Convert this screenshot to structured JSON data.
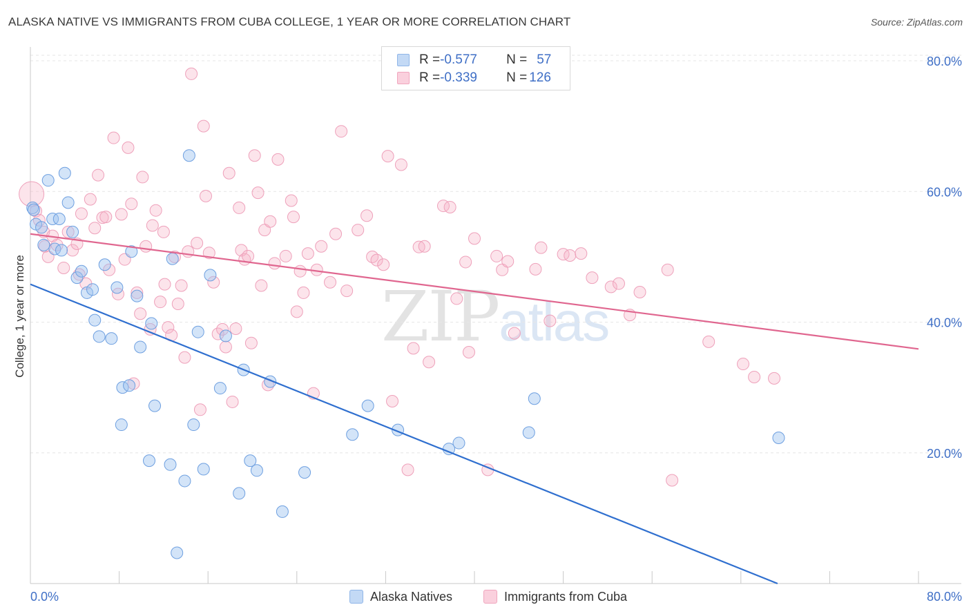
{
  "header": {
    "title": "ALASKA NATIVE VS IMMIGRANTS FROM CUBA COLLEGE, 1 YEAR OR MORE CORRELATION CHART",
    "source": "Source: ZipAtlas.com"
  },
  "watermark": {
    "zip": "ZIP",
    "atlas": "atlas"
  },
  "legend": {
    "rows": [
      {
        "r_label": "R = ",
        "r_value": "-0.577",
        "n_label": "N = ",
        "n_value": "57",
        "color": "#9ec3ef"
      },
      {
        "r_label": "R = ",
        "r_value": "-0.339",
        "n_label": "N = ",
        "n_value": "126",
        "color": "#f5b1c7"
      }
    ]
  },
  "bottom_legend": [
    "Alaska Natives",
    "Immigrants from Cuba"
  ],
  "chart_data": {
    "type": "scatter",
    "xlabel": "",
    "ylabel": "College, 1 year or more",
    "xlim": [
      0,
      80
    ],
    "ylim": [
      0,
      80
    ],
    "x_tick_labels": [
      "0.0%",
      "80.0%"
    ],
    "y_tick_labels": [
      "20.0%",
      "40.0%",
      "60.0%",
      "80.0%"
    ],
    "y_ticks": [
      20,
      40,
      60,
      80
    ],
    "grid": true,
    "colors": {
      "Alaska Natives": "#9ec3ef",
      "Immigrants from Cuba": "#f5b1c7",
      "blue_line": "#2f6fcf",
      "pink_line": "#e0668f"
    },
    "series": [
      {
        "name": "Alaska Natives",
        "trend": {
          "x": [
            0,
            67.3
          ],
          "y": [
            45.8,
            0
          ]
        },
        "points": [
          [
            0.2,
            57.5
          ],
          [
            0.5,
            55
          ],
          [
            1.0,
            54.5
          ],
          [
            1.2,
            51.8
          ],
          [
            1.6,
            61.7
          ],
          [
            2.0,
            55.8
          ],
          [
            2.2,
            51.2
          ],
          [
            2.6,
            55.8
          ],
          [
            3.1,
            62.8
          ],
          [
            3.4,
            58.3
          ],
          [
            3.8,
            53.8
          ],
          [
            4.2,
            46.8
          ],
          [
            4.6,
            47.8
          ],
          [
            5.1,
            44.5
          ],
          [
            5.6,
            45
          ],
          [
            5.8,
            40.3
          ],
          [
            6.2,
            37.8
          ],
          [
            6.7,
            48.8
          ],
          [
            7.3,
            37.5
          ],
          [
            7.8,
            45.3
          ],
          [
            8.2,
            24.3
          ],
          [
            8.3,
            30
          ],
          [
            8.9,
            30.3
          ],
          [
            9.1,
            50.8
          ],
          [
            9.6,
            44
          ],
          [
            9.9,
            36.2
          ],
          [
            10.7,
            18.8
          ],
          [
            10.9,
            39.8
          ],
          [
            11.2,
            27.2
          ],
          [
            12.6,
            18.2
          ],
          [
            12.8,
            49.7
          ],
          [
            13.2,
            4.7
          ],
          [
            13.9,
            15.7
          ],
          [
            14.3,
            65.5
          ],
          [
            14.7,
            24.3
          ],
          [
            15.1,
            38.5
          ],
          [
            15.6,
            17.5
          ],
          [
            16.2,
            47.2
          ],
          [
            17.1,
            29.9
          ],
          [
            17.6,
            37.9
          ],
          [
            18.8,
            13.8
          ],
          [
            19.2,
            32.7
          ],
          [
            19.8,
            18.8
          ],
          [
            20.4,
            17.3
          ],
          [
            21.6,
            30.9
          ],
          [
            22.7,
            11
          ],
          [
            24.7,
            17
          ],
          [
            29.0,
            22.8
          ],
          [
            30.4,
            27.2
          ],
          [
            33.1,
            23.5
          ],
          [
            37.7,
            20.6
          ],
          [
            38.6,
            21.5
          ],
          [
            44.9,
            23.1
          ],
          [
            45.4,
            28.3
          ],
          [
            67.4,
            22.3
          ],
          [
            2.8,
            51.0
          ],
          [
            0.3,
            57.2
          ]
        ]
      },
      {
        "name": "Immigrants from Cuba",
        "trend": {
          "x": [
            0,
            80
          ],
          "y": [
            53.5,
            35.9
          ]
        },
        "points": [
          [
            0.1,
            59.6
          ],
          [
            0.5,
            57.0
          ],
          [
            0.8,
            55.6
          ],
          [
            1.2,
            53.8
          ],
          [
            1.6,
            50.0
          ],
          [
            2.0,
            53.2
          ],
          [
            2.4,
            51.8
          ],
          [
            3.0,
            48.3
          ],
          [
            3.4,
            53.8
          ],
          [
            3.8,
            51.0
          ],
          [
            4.2,
            52.0
          ],
          [
            4.6,
            56.6
          ],
          [
            5.0,
            45.9
          ],
          [
            5.4,
            58.8
          ],
          [
            5.8,
            54.4
          ],
          [
            6.1,
            62.5
          ],
          [
            6.5,
            56.0
          ],
          [
            6.8,
            56.1
          ],
          [
            7.1,
            48.0
          ],
          [
            7.5,
            68.2
          ],
          [
            7.9,
            44.3
          ],
          [
            8.2,
            56.5
          ],
          [
            8.5,
            49.6
          ],
          [
            8.8,
            66.7
          ],
          [
            9.1,
            58.1
          ],
          [
            9.3,
            30.6
          ],
          [
            9.6,
            44.5
          ],
          [
            9.9,
            41.3
          ],
          [
            10.1,
            62.2
          ],
          [
            10.4,
            51.6
          ],
          [
            10.8,
            38.9
          ],
          [
            11.0,
            54.8
          ],
          [
            11.3,
            57.1
          ],
          [
            11.7,
            43.1
          ],
          [
            12.0,
            53.8
          ],
          [
            12.4,
            39.2
          ],
          [
            12.7,
            38.0
          ],
          [
            13.0,
            50.0
          ],
          [
            13.3,
            42.8
          ],
          [
            13.6,
            45.6
          ],
          [
            13.9,
            34.6
          ],
          [
            14.2,
            50.8
          ],
          [
            14.5,
            78.0
          ],
          [
            15.0,
            52.1
          ],
          [
            15.3,
            26.6
          ],
          [
            15.6,
            70.0
          ],
          [
            15.8,
            59.3
          ],
          [
            16.1,
            50.6
          ],
          [
            16.5,
            46.1
          ],
          [
            16.9,
            38.2
          ],
          [
            17.3,
            38.9
          ],
          [
            17.6,
            36.2
          ],
          [
            17.9,
            62.8
          ],
          [
            18.2,
            27.8
          ],
          [
            18.5,
            39.0
          ],
          [
            18.8,
            57.5
          ],
          [
            19.0,
            51.0
          ],
          [
            19.3,
            49.6
          ],
          [
            19.6,
            50.1
          ],
          [
            19.9,
            36.8
          ],
          [
            20.2,
            65.5
          ],
          [
            20.5,
            59.8
          ],
          [
            20.8,
            45.6
          ],
          [
            21.1,
            54.1
          ],
          [
            21.4,
            30.4
          ],
          [
            21.6,
            55.4
          ],
          [
            22.0,
            49.0
          ],
          [
            22.3,
            64.9
          ],
          [
            23.0,
            50.1
          ],
          [
            23.5,
            58.6
          ],
          [
            23.7,
            56.1
          ],
          [
            24.0,
            41.6
          ],
          [
            24.3,
            47.8
          ],
          [
            24.6,
            44.5
          ],
          [
            25.0,
            50.5
          ],
          [
            25.5,
            29.1
          ],
          [
            26.2,
            51.6
          ],
          [
            27.0,
            46.1
          ],
          [
            27.5,
            53.5
          ],
          [
            28.0,
            69.2
          ],
          [
            28.5,
            44.8
          ],
          [
            29.5,
            54.1
          ],
          [
            30.3,
            56.3
          ],
          [
            30.8,
            50.0
          ],
          [
            31.2,
            49.5
          ],
          [
            31.8,
            48.8
          ],
          [
            32.2,
            65.4
          ],
          [
            32.6,
            27.9
          ],
          [
            33.4,
            64.1
          ],
          [
            34.0,
            17.4
          ],
          [
            34.5,
            36.0
          ],
          [
            35.0,
            51.5
          ],
          [
            35.5,
            51.6
          ],
          [
            35.9,
            33.9
          ],
          [
            37.2,
            57.8
          ],
          [
            37.8,
            57.6
          ],
          [
            38.4,
            43.6
          ],
          [
            39.2,
            49.2
          ],
          [
            39.5,
            35.4
          ],
          [
            40.0,
            52.8
          ],
          [
            41.2,
            17.4
          ],
          [
            42.0,
            50.1
          ],
          [
            42.5,
            48.0
          ],
          [
            43.0,
            49.3
          ],
          [
            43.6,
            38.3
          ],
          [
            45.5,
            48.1
          ],
          [
            46.0,
            51.4
          ],
          [
            46.8,
            40.2
          ],
          [
            48.0,
            50.4
          ],
          [
            48.6,
            50.2
          ],
          [
            49.6,
            50.5
          ],
          [
            50.6,
            46.8
          ],
          [
            52.3,
            45.4
          ],
          [
            53.0,
            45.9
          ],
          [
            54.0,
            41.1
          ],
          [
            54.9,
            44.6
          ],
          [
            57.4,
            48.0
          ],
          [
            57.8,
            15.8
          ],
          [
            61.1,
            37.0
          ],
          [
            64.2,
            33.6
          ],
          [
            65.2,
            31.6
          ],
          [
            67.0,
            31.4
          ],
          [
            1.3,
            51.6
          ],
          [
            4.4,
            47.3
          ],
          [
            12.1,
            45.8
          ],
          [
            25.8,
            48.0
          ]
        ]
      }
    ]
  }
}
